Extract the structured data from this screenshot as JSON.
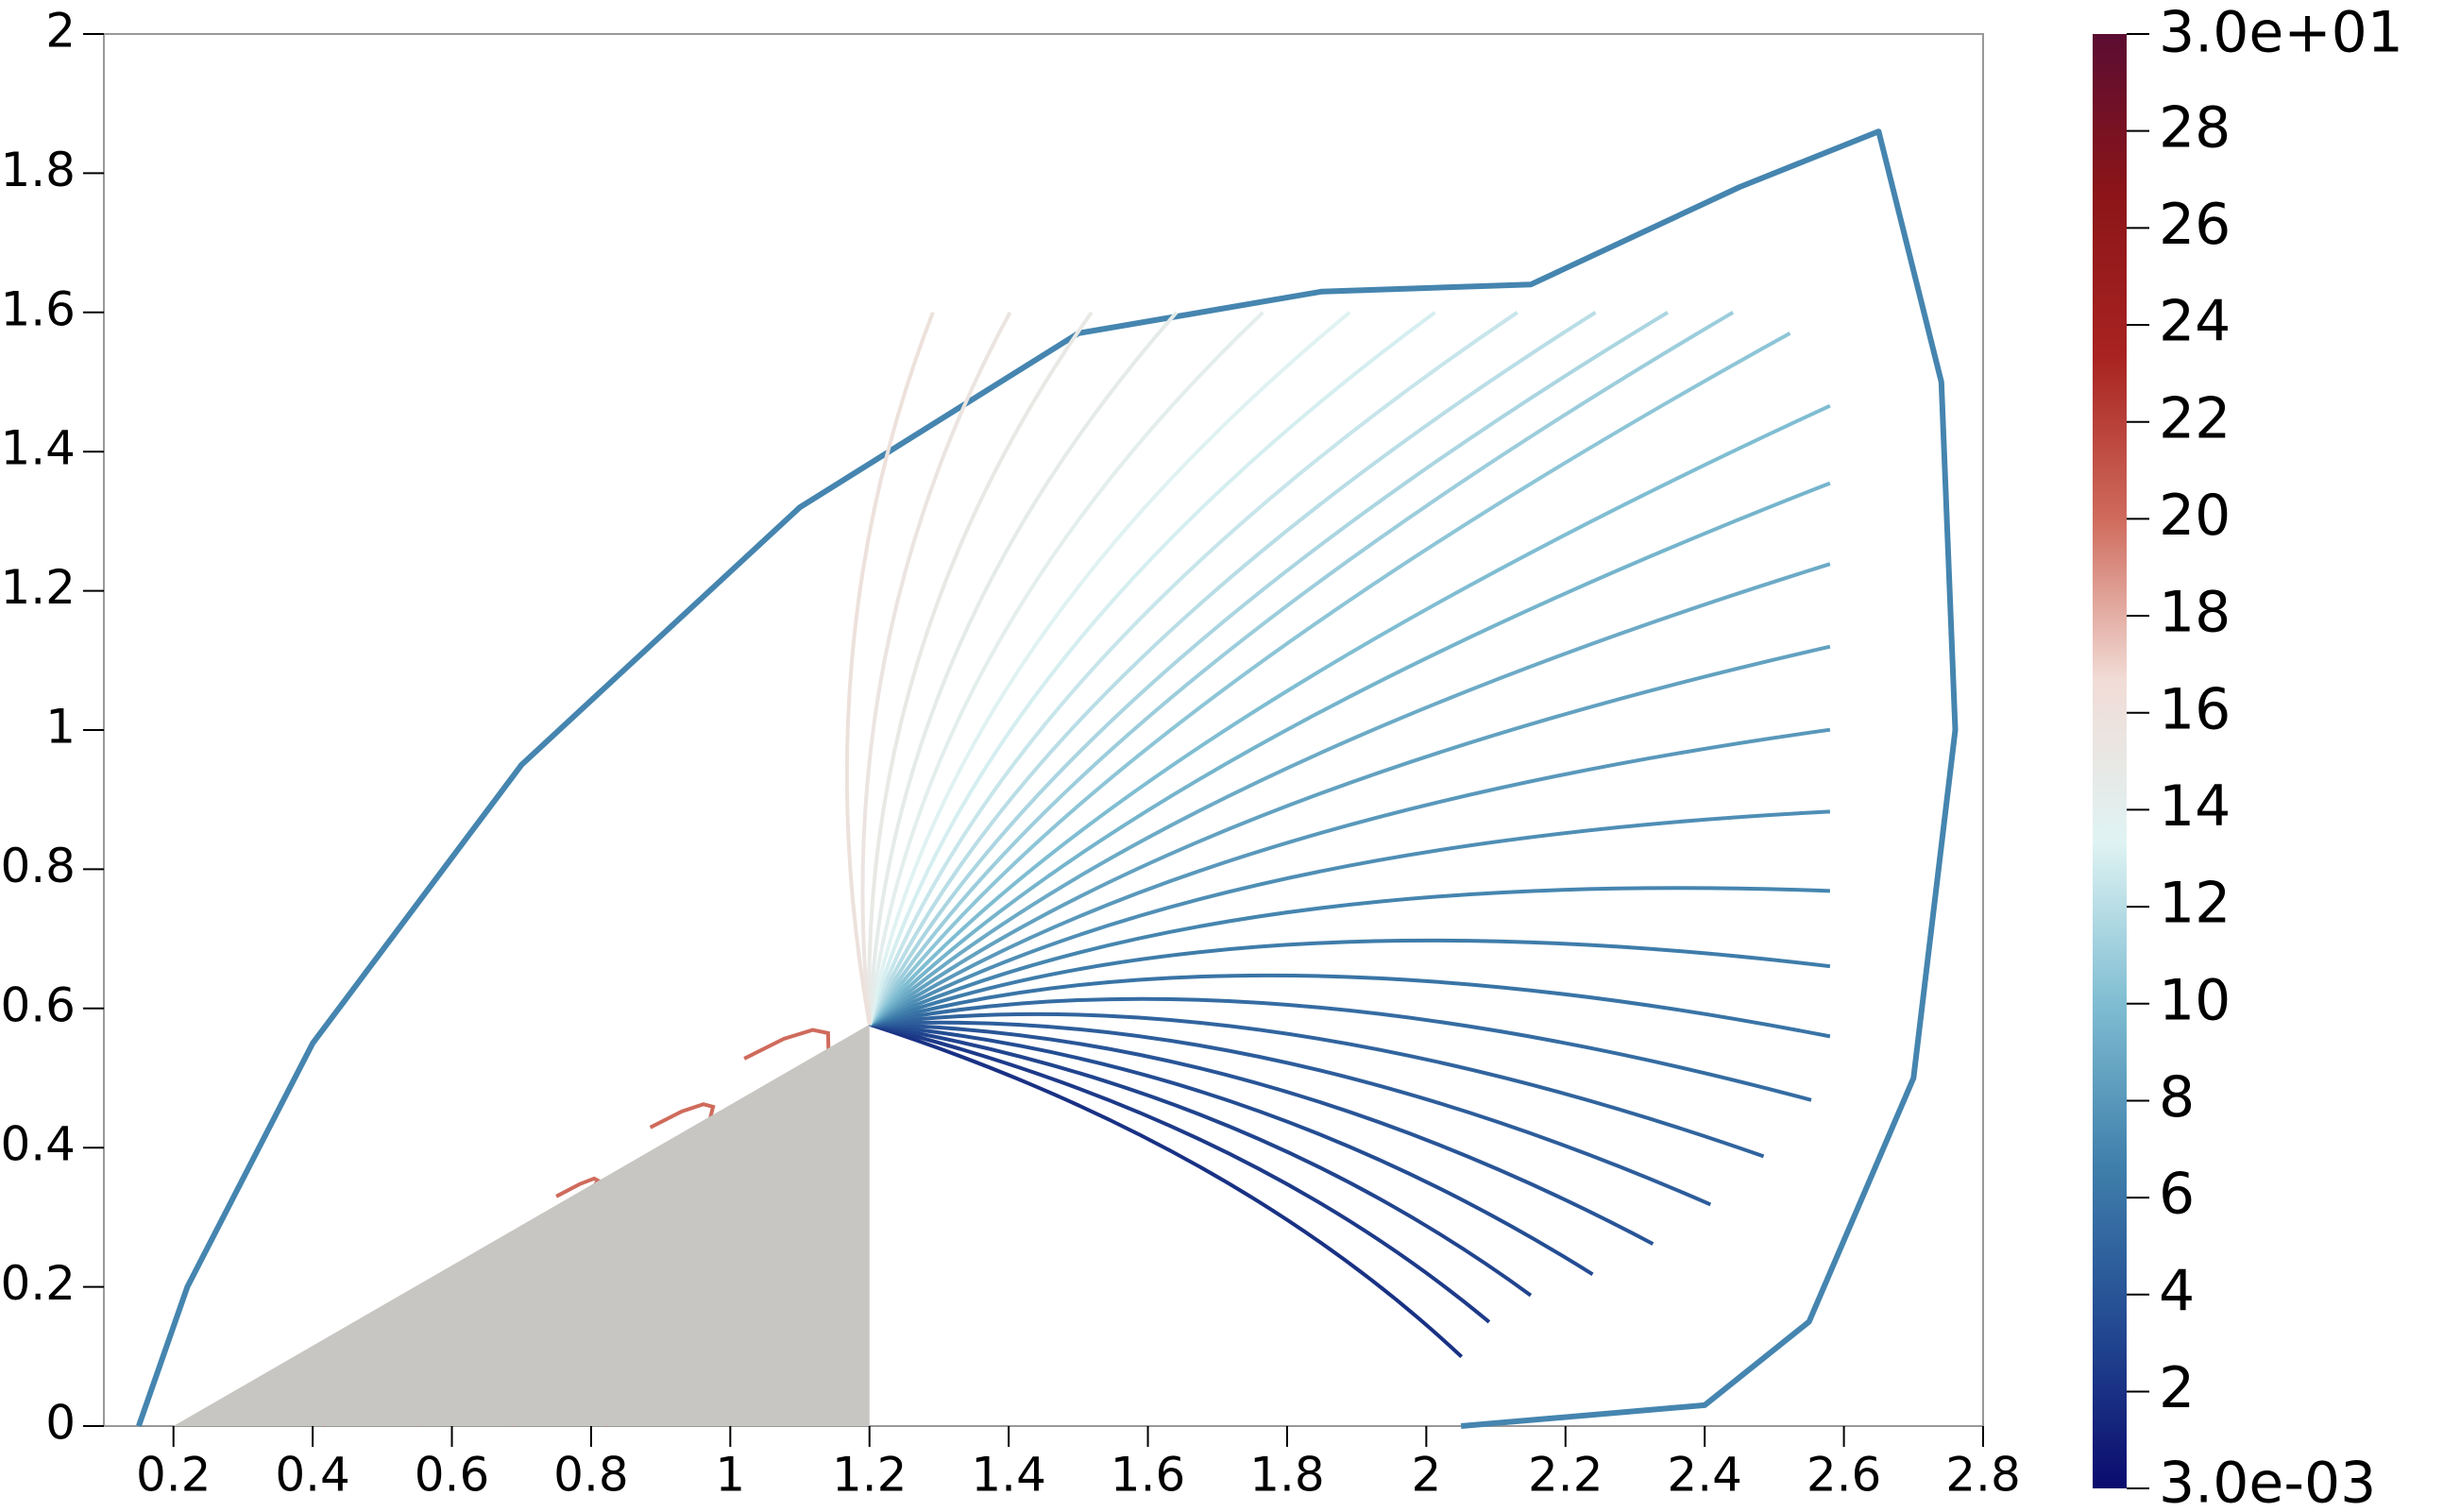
{
  "chart_data": {
    "type": "contour",
    "xlim": [
      0.1,
      2.8
    ],
    "ylim": [
      0,
      2
    ],
    "xticks": [
      0.2,
      0.4,
      0.6,
      0.8,
      1,
      1.2,
      1.4,
      1.6,
      1.8,
      2,
      2.2,
      2.4,
      2.6,
      2.8
    ],
    "yticks": [
      0,
      0.2,
      0.4,
      0.6,
      0.8,
      1,
      1.2,
      1.4,
      1.6,
      1.8,
      2
    ],
    "wedge": {
      "x": [
        0.2,
        1.2,
        1.2
      ],
      "y": [
        0,
        0,
        0.577
      ],
      "color": "#c8c6c2"
    },
    "levels": [
      2,
      2.5,
      3,
      3.5,
      4,
      4.5,
      5,
      5.5,
      6,
      6.5,
      7,
      7.5,
      8,
      8.5,
      9,
      9.5,
      10,
      10.5,
      11,
      11.5,
      12,
      12.5,
      13,
      13.5,
      14,
      14.5,
      15,
      15.5,
      16
    ],
    "shock_level": 7,
    "inner_level": 20,
    "colorbar": {
      "lim": [
        0.003,
        30
      ],
      "ticks": [
        {
          "value": 0.003,
          "label": "3.0e-03"
        },
        2,
        4,
        6,
        8,
        10,
        12,
        14,
        16,
        18,
        20,
        22,
        24,
        26,
        28,
        {
          "value": 30,
          "label": "3.0e+01"
        }
      ],
      "colors": [
        "#0b0b6e",
        "#234a92",
        "#3f7fab",
        "#7fbdd2",
        "#dff3f3",
        "#f1dcd6",
        "#cf6b5c",
        "#a82321",
        "#8c1518",
        "#5b0d32"
      ]
    }
  }
}
